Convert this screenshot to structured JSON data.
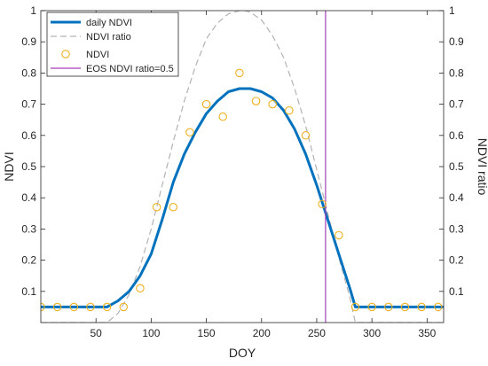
{
  "colors": {
    "daily": "#0072bd",
    "ratio": "#b3b3b3",
    "ndvi_points": "#edb120",
    "eos": "#a33fb8",
    "axes": "#262626"
  },
  "chart_data": {
    "type": "line",
    "xlabel": "DOY",
    "ylabel_left": "NDVI",
    "ylabel_right": "NDVI ratio",
    "xlim": [
      0,
      365
    ],
    "ylim_left": [
      0,
      1
    ],
    "ylim_right": [
      0,
      1
    ],
    "x_ticks": [
      "50",
      "100",
      "150",
      "200",
      "250",
      "300",
      "350"
    ],
    "y_ticks_left": [
      "0.1",
      "0.2",
      "0.3",
      "0.4",
      "0.5",
      "0.6",
      "0.7",
      "0.8",
      "0.9",
      "1"
    ],
    "y_ticks_right": [
      "0.1",
      "0.2",
      "0.3",
      "0.4",
      "0.5",
      "0.6",
      "0.7",
      "0.8",
      "0.9",
      "1"
    ],
    "x_tick_values": [
      50,
      100,
      150,
      200,
      250,
      300,
      350
    ],
    "y_tick_values": [
      0.1,
      0.2,
      0.3,
      0.4,
      0.5,
      0.6,
      0.7,
      0.8,
      0.9,
      1
    ],
    "grid": false,
    "legend_position": "top-left",
    "series": [
      {
        "name": "daily NDVI",
        "style": "line",
        "x": [
          0,
          60,
          70,
          80,
          90,
          100,
          110,
          120,
          130,
          140,
          150,
          160,
          170,
          180,
          190,
          200,
          210,
          220,
          230,
          240,
          250,
          260,
          270,
          280,
          285,
          290,
          300,
          365
        ],
        "y": [
          0.05,
          0.05,
          0.07,
          0.1,
          0.15,
          0.22,
          0.33,
          0.45,
          0.54,
          0.61,
          0.67,
          0.71,
          0.74,
          0.75,
          0.75,
          0.74,
          0.72,
          0.68,
          0.62,
          0.54,
          0.44,
          0.33,
          0.22,
          0.11,
          0.05,
          0.05,
          0.05,
          0.05
        ]
      },
      {
        "name": "NDVI ratio",
        "style": "dashed",
        "x": [
          0,
          60,
          70,
          80,
          90,
          100,
          110,
          120,
          130,
          140,
          150,
          160,
          170,
          180,
          185,
          190,
          200,
          210,
          220,
          230,
          240,
          250,
          260,
          270,
          280,
          285,
          365
        ],
        "y": [
          0,
          0,
          0.03,
          0.09,
          0.18,
          0.3,
          0.44,
          0.58,
          0.71,
          0.82,
          0.91,
          0.96,
          0.99,
          1.0,
          1.0,
          0.995,
          0.97,
          0.92,
          0.85,
          0.75,
          0.63,
          0.49,
          0.35,
          0.21,
          0.08,
          0,
          0
        ]
      },
      {
        "name": "NDVI",
        "style": "markers",
        "x": [
          0,
          15,
          30,
          45,
          60,
          75,
          90,
          105,
          120,
          135,
          150,
          165,
          180,
          195,
          210,
          225,
          240,
          255,
          270,
          285,
          300,
          315,
          330,
          345,
          360
        ],
        "y": [
          0.05,
          0.05,
          0.05,
          0.05,
          0.05,
          0.05,
          0.11,
          0.37,
          0.37,
          0.61,
          0.7,
          0.66,
          0.8,
          0.71,
          0.7,
          0.68,
          0.6,
          0.38,
          0.28,
          0.05,
          0.05,
          0.05,
          0.05,
          0.05,
          0.05
        ]
      },
      {
        "name": "EOS NDVI ratio=0.5",
        "style": "vline",
        "x": 258
      }
    ]
  }
}
